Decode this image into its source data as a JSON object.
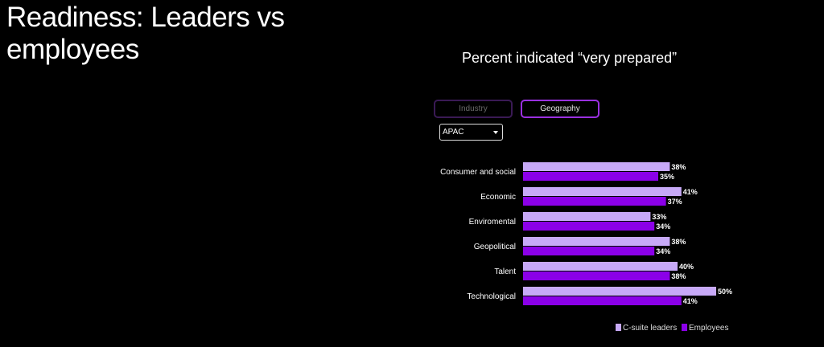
{
  "page_title": "Readiness: Leaders vs employees",
  "tabs": [
    {
      "label": "Industry",
      "active": false
    },
    {
      "label": "Geography",
      "active": true
    }
  ],
  "dropdown": {
    "selected": "APAC"
  },
  "chart_data": {
    "type": "bar",
    "orientation": "horizontal",
    "title": "Percent indicated “very prepared”",
    "categories": [
      "Consumer and social",
      "Economic",
      "Enviromental",
      "Geopolitical",
      "Talent",
      "Technological"
    ],
    "series": [
      {
        "name": "C-suite leaders",
        "color": "#c7a9f7",
        "values": [
          38,
          41,
          33,
          38,
          40,
          50
        ]
      },
      {
        "name": "Employees",
        "color": "#8b00e8",
        "values": [
          35,
          37,
          34,
          34,
          38,
          41
        ]
      }
    ],
    "value_suffix": "%",
    "legend_placement": "bottom-right",
    "grid": false
  }
}
